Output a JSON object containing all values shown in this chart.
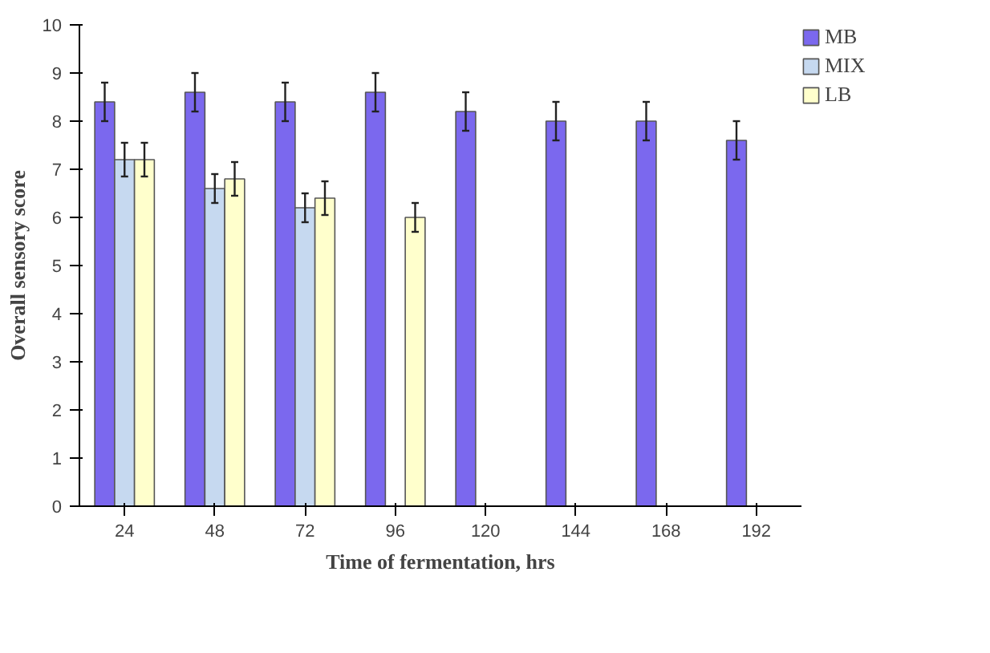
{
  "chart_data": {
    "type": "bar",
    "xlabel": "Time of fermentation, hrs",
    "ylabel": "Overall sensory score",
    "categories": [
      "24",
      "48",
      "72",
      "96",
      "120",
      "144",
      "168",
      "192"
    ],
    "series": [
      {
        "name": "MB",
        "color": "#7b68ee",
        "values": [
          8.4,
          8.6,
          8.4,
          8.6,
          8.2,
          8.0,
          8.0,
          7.6
        ],
        "errors": [
          0.4,
          0.4,
          0.4,
          0.4,
          0.4,
          0.4,
          0.4,
          0.4
        ]
      },
      {
        "name": "MIX",
        "color": "#c6d9f0",
        "values": [
          7.2,
          6.6,
          6.2,
          null,
          null,
          null,
          null,
          null
        ],
        "errors": [
          0.35,
          0.3,
          0.3,
          null,
          null,
          null,
          null,
          null
        ]
      },
      {
        "name": "LB",
        "color": "#ffffcc",
        "values": [
          7.2,
          6.8,
          6.4,
          6.0,
          null,
          null,
          null,
          null
        ],
        "errors": [
          0.35,
          0.35,
          0.35,
          0.3,
          null,
          null,
          null,
          null
        ]
      }
    ],
    "ylim": [
      0,
      10
    ],
    "yticks": [
      0,
      1,
      2,
      3,
      4,
      5,
      6,
      7,
      8,
      9,
      10
    ],
    "grid": false,
    "legend": "top right"
  }
}
